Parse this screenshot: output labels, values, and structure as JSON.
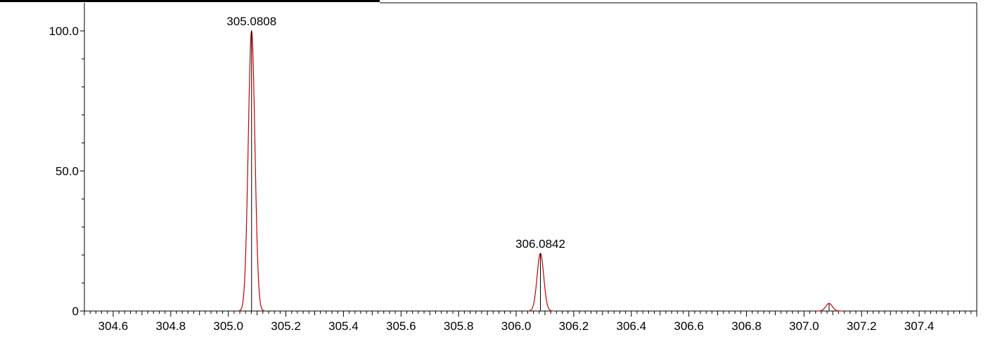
{
  "chart_data": {
    "type": "line",
    "title": "",
    "xlabel": "",
    "ylabel": "",
    "xlim": [
      304.5,
      307.6
    ],
    "ylim": [
      0,
      100
    ],
    "x_ticks": [
      "304.6",
      "304.8",
      "305.0",
      "305.2",
      "305.4",
      "305.6",
      "305.8",
      "306.0",
      "306.2",
      "306.4",
      "306.6",
      "306.8",
      "307.0",
      "307.2",
      "307.4"
    ],
    "y_ticks": [
      "0",
      "50.0",
      "100.0"
    ],
    "grid": false,
    "sticks": [
      {
        "x": 305.0808,
        "y": 100.0
      },
      {
        "x": 306.0842,
        "y": 20.6
      },
      {
        "x": 307.087,
        "y": 2.7
      }
    ],
    "peak_labels": [
      {
        "x": 305.0808,
        "y": 100.0,
        "text": "305.0808"
      },
      {
        "x": 306.0842,
        "y": 20.6,
        "text": "306.0842"
      }
    ],
    "profile": {
      "color": "#c00000",
      "sigma": 0.0115
    },
    "stick_color": "#000000"
  }
}
